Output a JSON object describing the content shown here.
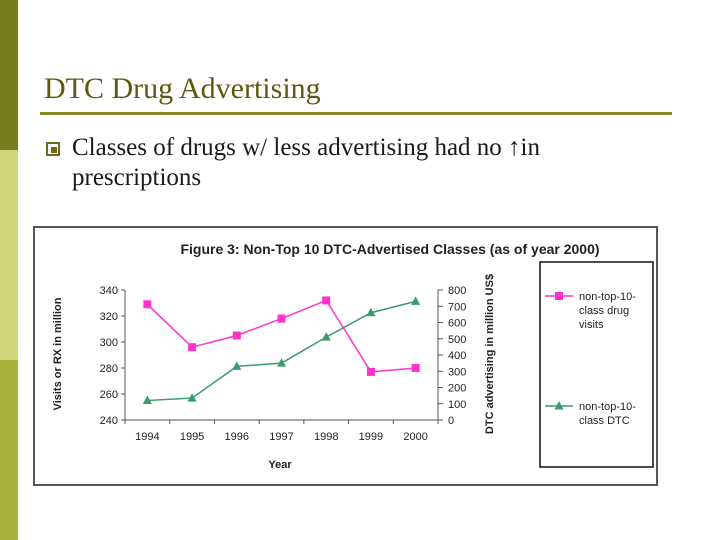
{
  "slide": {
    "title": "DTC Drug Advertising",
    "bullet_text": "Classes of drugs w/ less advertising had no ↑in prescriptions"
  },
  "colors": {
    "accent_dark": "#7a7a1e",
    "accent_light": "#d2d57a",
    "title_color": "#5a5a12",
    "series_visits": "#ff33cc",
    "series_dtc": "#3a9a6a"
  },
  "chart_data": {
    "type": "line",
    "title": "Figure 3: Non-Top 10 DTC-Advertised Classes (as of year 2000)",
    "xlabel": "Year",
    "ylabel_left": "Visits or RX in million",
    "ylabel_right": "DTC advertising in million US$",
    "categories": [
      "1994",
      "1995",
      "1996",
      "1997",
      "1998",
      "1999",
      "2000"
    ],
    "ylim_left": [
      240,
      340
    ],
    "yticks_left": [
      "340",
      "320",
      "300",
      "280",
      "260",
      "240"
    ],
    "ylim_right": [
      0,
      800
    ],
    "yticks_right": [
      "800",
      "700",
      "600",
      "500",
      "400",
      "300",
      "200",
      "100",
      "0"
    ],
    "grid": false,
    "legend_position": "right",
    "series": [
      {
        "name": "non-top-10-class drug visits",
        "axis": "left",
        "marker": "square",
        "values": [
          329,
          296,
          305,
          318,
          332,
          277,
          280
        ]
      },
      {
        "name": "non-top-10-class DTC",
        "axis": "right",
        "marker": "triangle",
        "values": [
          120,
          135,
          330,
          350,
          510,
          660,
          730
        ]
      }
    ]
  }
}
